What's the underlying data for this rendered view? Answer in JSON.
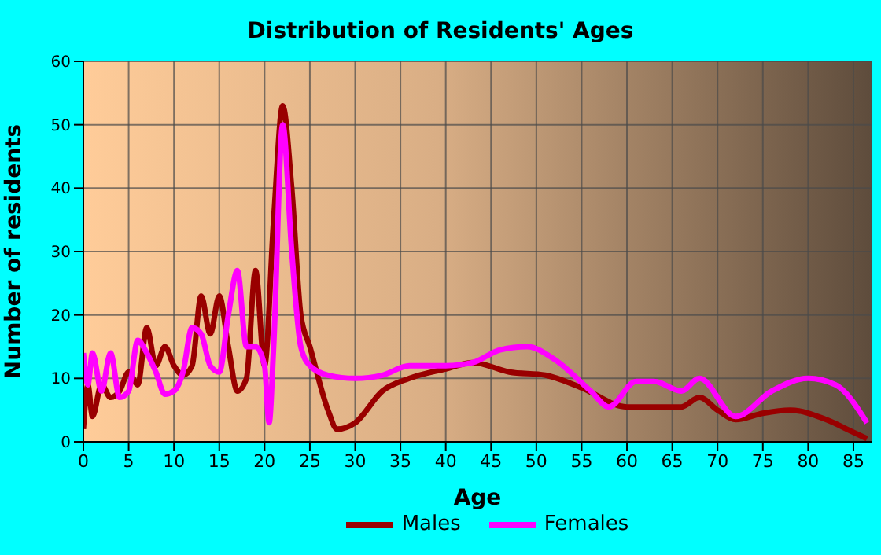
{
  "chart_data": {
    "type": "line",
    "title": "Distribution of Residents' Ages",
    "xlabel": "Age",
    "ylabel": "Number of residents",
    "xlim": [
      0,
      87
    ],
    "xticks": [
      0,
      5,
      10,
      15,
      20,
      25,
      30,
      35,
      40,
      45,
      50,
      55,
      60,
      65,
      70,
      75,
      80,
      85
    ],
    "ylim": [
      0,
      60
    ],
    "yticks": [
      0,
      10,
      20,
      30,
      40,
      50,
      60
    ],
    "grid": true,
    "legend": "bottom",
    "marker": "none",
    "line_style": "solid",
    "series": [
      {
        "name": "Males",
        "color": "#990000",
        "x": [
          0,
          0.5,
          1,
          2,
          3,
          4,
          5,
          6,
          7,
          8,
          9,
          10,
          11,
          12,
          13,
          14,
          15,
          16,
          17,
          18,
          19,
          20,
          21,
          22,
          23,
          24,
          25,
          27,
          28,
          30,
          33,
          36,
          40,
          43,
          47,
          51,
          55,
          60,
          63,
          66,
          68,
          70,
          72,
          75,
          78,
          82,
          85,
          86.5
        ],
        "values": [
          2,
          9,
          4,
          9,
          7,
          8,
          11,
          9,
          18,
          12,
          15,
          12,
          10.5,
          12,
          23,
          17,
          23,
          15,
          8,
          10,
          27,
          12,
          35,
          53,
          40,
          20,
          15,
          5,
          2,
          3,
          8,
          10,
          11.5,
          12.5,
          11,
          10.5,
          8.5,
          5.5,
          5.5,
          5.5,
          7,
          5,
          3.5,
          4.5,
          5,
          3.5,
          1.5,
          0.5
        ]
      },
      {
        "name": "Females",
        "color": "#ff00ff",
        "x": [
          0,
          0.5,
          1,
          2,
          3,
          4,
          5,
          6,
          7,
          8,
          9,
          10,
          11,
          12,
          13,
          14,
          15,
          16,
          17,
          18,
          19,
          20,
          20.5,
          21,
          22,
          23,
          24,
          25,
          27,
          30,
          33,
          36,
          40,
          43,
          46,
          49,
          52,
          56,
          58,
          61,
          63,
          66,
          68,
          72,
          76,
          80,
          83,
          86.5
        ],
        "values": [
          14,
          9,
          14,
          8,
          14,
          7,
          8,
          16,
          14,
          11,
          7.5,
          8,
          11,
          18,
          17,
          12,
          11,
          20,
          27,
          15,
          15,
          12,
          3,
          15,
          50,
          30,
          15,
          12,
          10.5,
          10,
          10.5,
          12,
          12,
          12.5,
          14.5,
          15,
          13,
          8,
          5.5,
          9.5,
          9.5,
          8,
          10,
          4,
          8,
          10,
          9,
          3
        ]
      }
    ]
  }
}
